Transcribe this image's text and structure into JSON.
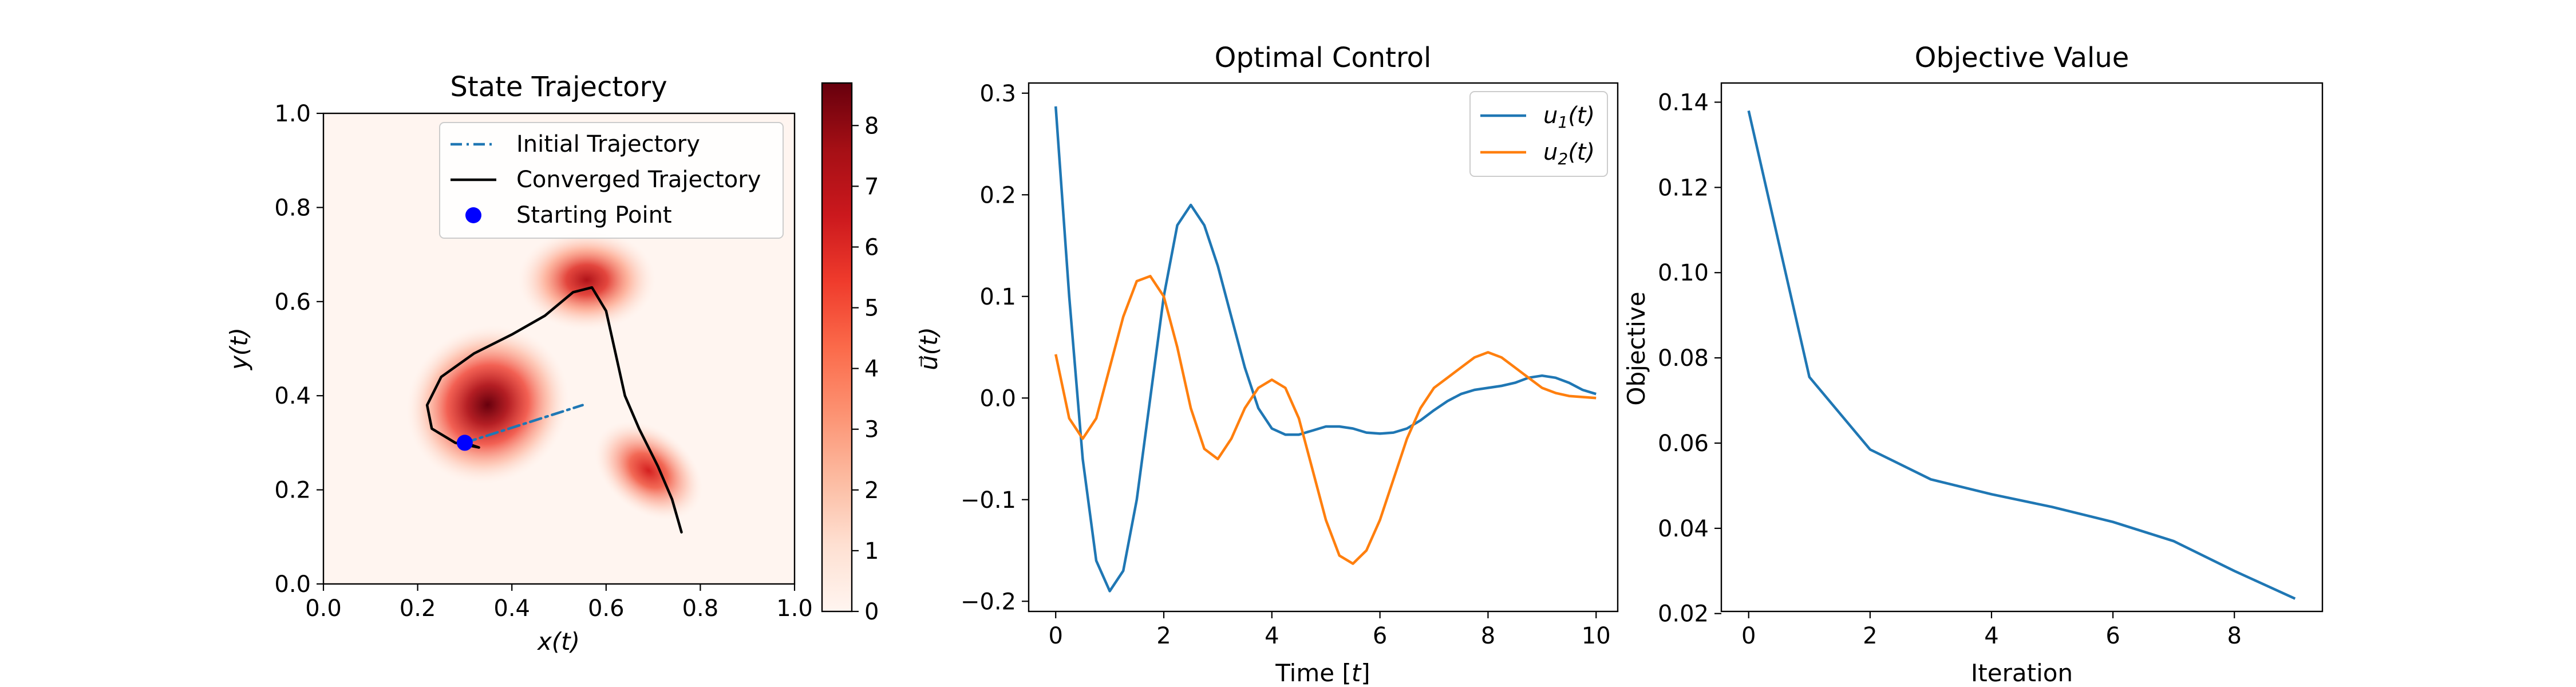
{
  "chart_data": [
    {
      "type": "heatmap",
      "title": "State Trajectory",
      "xlabel": "x(t)",
      "ylabel": "y(t)",
      "xlim": [
        0.0,
        1.0
      ],
      "ylim": [
        0.0,
        1.0
      ],
      "x_ticks": [
        "0.0",
        "0.2",
        "0.4",
        "0.6",
        "0.8",
        "1.0"
      ],
      "y_ticks": [
        "0.0",
        "0.2",
        "0.4",
        "0.6",
        "0.8",
        "1.0"
      ],
      "colormap": "Reds",
      "colorbar": {
        "range": [
          0,
          8.7
        ],
        "ticks": [
          "0",
          "1",
          "2",
          "3",
          "4",
          "5",
          "6",
          "7",
          "8"
        ]
      },
      "heat_sources": [
        {
          "x": 0.35,
          "y": 0.38,
          "peak": 8.7
        },
        {
          "x": 0.56,
          "y": 0.64,
          "peak": 6.8
        },
        {
          "x": 0.69,
          "y": 0.24,
          "peak": 5.2
        }
      ],
      "legend": {
        "position": "top-right",
        "entries": [
          "Initial Trajectory",
          "Converged Trajectory",
          "Starting Point"
        ]
      },
      "series": [
        {
          "name": "Initial Trajectory",
          "style": "dashdot",
          "color": "#1f77b4",
          "points": [
            [
              0.3,
              0.3
            ],
            [
              0.55,
              0.38
            ]
          ]
        },
        {
          "name": "Converged Trajectory",
          "style": "solid",
          "color": "#000000",
          "points": [
            [
              0.3,
              0.3
            ],
            [
              0.33,
              0.29
            ],
            [
              0.28,
              0.3
            ],
            [
              0.23,
              0.33
            ],
            [
              0.22,
              0.38
            ],
            [
              0.25,
              0.44
            ],
            [
              0.32,
              0.49
            ],
            [
              0.4,
              0.53
            ],
            [
              0.47,
              0.57
            ],
            [
              0.53,
              0.62
            ],
            [
              0.57,
              0.63
            ],
            [
              0.6,
              0.58
            ],
            [
              0.62,
              0.49
            ],
            [
              0.64,
              0.4
            ],
            [
              0.67,
              0.33
            ],
            [
              0.71,
              0.25
            ],
            [
              0.74,
              0.18
            ],
            [
              0.76,
              0.11
            ]
          ]
        },
        {
          "name": "Starting Point",
          "style": "marker",
          "color": "#0000ff",
          "points": [
            [
              0.3,
              0.3
            ]
          ]
        }
      ]
    },
    {
      "type": "line",
      "title": "Optimal Control",
      "xlabel": "Time [t]",
      "ylabel": "u⃗(t)",
      "xlim": [
        -0.5,
        10.4
      ],
      "ylim": [
        -0.21,
        0.31
      ],
      "x_ticks": [
        "0",
        "2",
        "4",
        "6",
        "8",
        "10"
      ],
      "y_ticks": [
        "−0.2",
        "−0.1",
        "0.0",
        "0.1",
        "0.2",
        "0.3"
      ],
      "legend": {
        "position": "top-right",
        "entries": [
          "u1(t)",
          "u2(t)"
        ]
      },
      "series": [
        {
          "name": "u1(t)",
          "color": "#1f77b4",
          "x": [
            0,
            0.25,
            0.5,
            0.75,
            1.0,
            1.25,
            1.5,
            1.75,
            2.0,
            2.25,
            2.5,
            2.75,
            3.0,
            3.25,
            3.5,
            3.75,
            4.0,
            4.25,
            4.5,
            4.75,
            5.0,
            5.25,
            5.5,
            5.75,
            6.0,
            6.25,
            6.5,
            6.75,
            7.0,
            7.25,
            7.5,
            7.75,
            8.0,
            8.25,
            8.5,
            8.75,
            9.0,
            9.25,
            9.5,
            9.75,
            10.0
          ],
          "y": [
            0.287,
            0.1,
            -0.06,
            -0.16,
            -0.19,
            -0.17,
            -0.1,
            0.0,
            0.1,
            0.17,
            0.19,
            0.17,
            0.13,
            0.08,
            0.03,
            -0.01,
            -0.03,
            -0.036,
            -0.036,
            -0.032,
            -0.028,
            -0.028,
            -0.03,
            -0.034,
            -0.035,
            -0.034,
            -0.03,
            -0.022,
            -0.012,
            -0.003,
            0.004,
            0.008,
            0.01,
            0.012,
            0.015,
            0.02,
            0.022,
            0.02,
            0.015,
            0.008,
            0.004
          ]
        },
        {
          "name": "u2(t)",
          "color": "#ff7f0e",
          "x": [
            0,
            0.25,
            0.5,
            0.75,
            1.0,
            1.25,
            1.5,
            1.75,
            2.0,
            2.25,
            2.5,
            2.75,
            3.0,
            3.25,
            3.5,
            3.75,
            4.0,
            4.25,
            4.5,
            4.75,
            5.0,
            5.25,
            5.5,
            5.75,
            6.0,
            6.25,
            6.5,
            6.75,
            7.0,
            7.25,
            7.5,
            7.75,
            8.0,
            8.25,
            8.5,
            8.75,
            9.0,
            9.25,
            9.5,
            9.75,
            10.0
          ],
          "y": [
            0.043,
            -0.02,
            -0.04,
            -0.02,
            0.03,
            0.08,
            0.115,
            0.12,
            0.1,
            0.05,
            -0.01,
            -0.05,
            -0.06,
            -0.04,
            -0.01,
            0.01,
            0.018,
            0.01,
            -0.02,
            -0.07,
            -0.12,
            -0.155,
            -0.163,
            -0.15,
            -0.12,
            -0.08,
            -0.04,
            -0.01,
            0.01,
            0.02,
            0.03,
            0.04,
            0.045,
            0.04,
            0.03,
            0.02,
            0.01,
            0.005,
            0.002,
            0.001,
            0.0
          ]
        }
      ]
    },
    {
      "type": "line",
      "title": "Objective Value",
      "xlabel": "Iteration",
      "ylabel": "Objective",
      "xlim": [
        -0.45,
        9.45
      ],
      "ylim": [
        0.0205,
        0.1445
      ],
      "x_ticks": [
        "0",
        "2",
        "4",
        "6",
        "8"
      ],
      "y_ticks": [
        "0.02",
        "0.04",
        "0.06",
        "0.08",
        "0.10",
        "0.12",
        "0.14"
      ],
      "series": [
        {
          "color": "#1f77b4",
          "x": [
            0,
            1,
            2,
            3,
            4,
            5,
            6,
            7,
            8,
            9
          ],
          "y": [
            0.138,
            0.0755,
            0.0585,
            0.0515,
            0.048,
            0.045,
            0.0415,
            0.037,
            0.03,
            0.0235
          ]
        }
      ]
    }
  ]
}
